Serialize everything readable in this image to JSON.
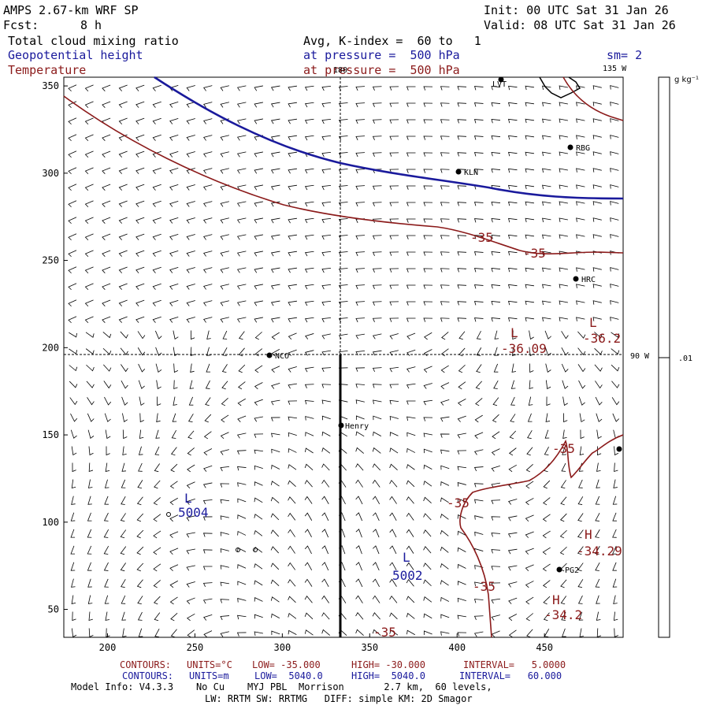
{
  "header": {
    "title": "AMPS 2.67-km WRF SP",
    "init": "Init: 00 UTC Sat 31 Jan 26",
    "fcst_label": "Fcst:",
    "fcst_value": "8 h",
    "valid": "Valid: 08 UTC Sat 31 Jan 26",
    "field1": "Total cloud mixing ratio",
    "field2": "Geopotential height",
    "field3": "Temperature",
    "avg": "Avg, K-index =  60 to   1",
    "pressure1": "at pressure =  500 hPa",
    "pressure2": "at pressure =  500 hPa",
    "sm": "sm= 2"
  },
  "colors": {
    "height": "#1a1a9c",
    "temperature": "#8b1a1a",
    "text": "#000000"
  },
  "map": {
    "x_ticks": [
      "200",
      "250",
      "300",
      "350",
      "400",
      "450"
    ],
    "y_ticks": [
      "350",
      "300",
      "250",
      "200",
      "150",
      "100",
      "50"
    ],
    "lon_180": "180",
    "lon_135w": "135 W",
    "lon_90w": "90 W",
    "colorbar_unit": "g kg⁻¹",
    "colorbar_value": ".01",
    "stations": [
      {
        "name": "LVT"
      },
      {
        "name": "RBG"
      },
      {
        "name": "KLN"
      },
      {
        "name": "HRC"
      },
      {
        "name": "NCO"
      },
      {
        "name": "Henry"
      },
      {
        "name": "PG2"
      }
    ],
    "temp_labels": [
      "-35",
      "-35",
      "-35",
      "-35",
      "-35",
      "-35"
    ],
    "lows": [
      {
        "mark": "L",
        "value": "-36.09"
      },
      {
        "mark": "L",
        "value": "-36.2"
      },
      {
        "mark": "L",
        "value": "5004"
      },
      {
        "mark": "L",
        "value": "5002"
      }
    ],
    "highs": [
      {
        "mark": "H",
        "value": "-34.29"
      },
      {
        "mark": "H",
        "value": "-34.2"
      }
    ]
  },
  "footer": {
    "line1_label": "CONTOURS:",
    "line1_units": "UNITS=°C",
    "line1_low": "LOW= -35.000",
    "line1_high": "HIGH= -30.000",
    "line1_interval": "INTERVAL=   5.0000",
    "line2_label": "CONTOURS:",
    "line2_units": "UNITS=m",
    "line2_low": "LOW=  5040.0",
    "line2_high": "HIGH=  5040.0",
    "line2_interval": "INTERVAL=   60.000",
    "model_info": "Model Info: V4.3.3    No Cu    MYJ PBL  Morrison       2.7 km,  60 levels,",
    "model_info2": "LW: RRTM SW: RRTMG   DIFF: simple KM: 2D Smagor"
  }
}
